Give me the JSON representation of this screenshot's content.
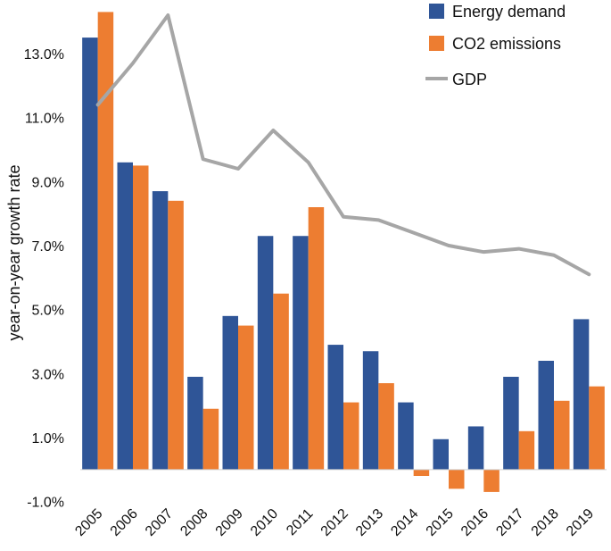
{
  "chart_data": {
    "type": "bar",
    "title": "",
    "xlabel": "",
    "ylabel": "year-on-year growth rate",
    "ylim": [
      -1.5,
      14.5
    ],
    "yticks": [
      -1.0,
      1.0,
      3.0,
      5.0,
      7.0,
      9.0,
      11.0,
      13.0
    ],
    "ytick_labels": [
      "-1.0%",
      "1.0%",
      "3.0%",
      "5.0%",
      "7.0%",
      "9.0%",
      "11.0%",
      "13.0%"
    ],
    "categories": [
      "2005",
      "2006",
      "2007",
      "2008",
      "2009",
      "2010",
      "2011",
      "2012",
      "2013",
      "2014",
      "2015",
      "2016",
      "2017",
      "2018",
      "2019"
    ],
    "series": [
      {
        "name": "Energy demand",
        "kind": "bar",
        "color": "#2f5597",
        "values": [
          13.5,
          9.6,
          8.7,
          2.9,
          4.8,
          7.3,
          7.3,
          3.9,
          3.7,
          2.1,
          0.95,
          1.35,
          2.9,
          3.4,
          4.7
        ]
      },
      {
        "name": "CO2 emissions",
        "kind": "bar",
        "color": "#ed7d31",
        "values": [
          14.3,
          9.5,
          8.4,
          1.9,
          4.5,
          5.5,
          8.2,
          2.1,
          2.7,
          -0.2,
          -0.6,
          -0.7,
          1.2,
          2.15,
          2.6
        ]
      },
      {
        "name": "GDP",
        "kind": "line",
        "color": "#a6a6a6",
        "values": [
          11.4,
          12.7,
          14.2,
          9.7,
          9.4,
          10.6,
          9.6,
          7.9,
          7.8,
          7.4,
          7.0,
          6.8,
          6.9,
          6.7,
          6.1
        ]
      }
    ],
    "legend": {
      "position": "top-right",
      "items": [
        "Energy demand",
        "CO2 emissions",
        "GDP"
      ]
    },
    "grid": false
  }
}
